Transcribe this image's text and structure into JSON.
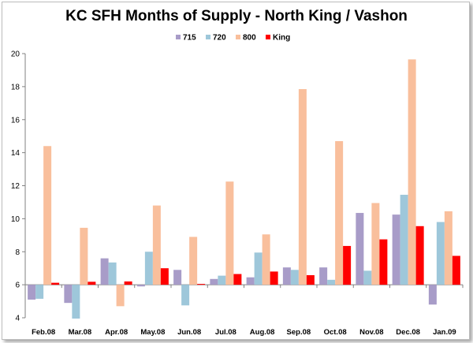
{
  "chart_data": {
    "type": "bar",
    "title": "KC SFH Months of Supply - North King / Vashon",
    "xlabel": "",
    "ylabel": "",
    "ylim": [
      4,
      20
    ],
    "yticks": [
      4,
      6,
      8,
      10,
      12,
      14,
      16,
      18,
      20
    ],
    "baseline": 6,
    "grid": false,
    "legend_position": "top",
    "categories": [
      "Feb.08",
      "Mar.08",
      "Apr.08",
      "May.08",
      "Jun.08",
      "Jul.08",
      "Aug.08",
      "Sep.08",
      "Oct.08",
      "Nov.08",
      "Dec.08",
      "Jan.09"
    ],
    "series": [
      {
        "name": "715",
        "color": "#a89cc8",
        "values": [
          5.1,
          4.9,
          7.6,
          5.9,
          6.9,
          6.35,
          6.45,
          7.05,
          7.05,
          10.35,
          10.25,
          4.8
        ]
      },
      {
        "name": "720",
        "color": "#9ec7da",
        "values": [
          5.15,
          3.95,
          7.35,
          8.0,
          4.75,
          6.55,
          7.95,
          6.9,
          6.3,
          6.85,
          11.45,
          9.8
        ]
      },
      {
        "name": "800",
        "color": "#f9bf9c",
        "values": [
          14.4,
          9.45,
          4.7,
          10.8,
          8.9,
          12.25,
          9.05,
          17.85,
          14.7,
          10.95,
          19.65,
          10.45
        ]
      },
      {
        "name": "King",
        "color": "#ff0000",
        "values": [
          6.12,
          6.18,
          6.2,
          7.0,
          6.05,
          6.65,
          6.8,
          6.58,
          8.35,
          8.75,
          9.55,
          7.75
        ]
      }
    ]
  }
}
